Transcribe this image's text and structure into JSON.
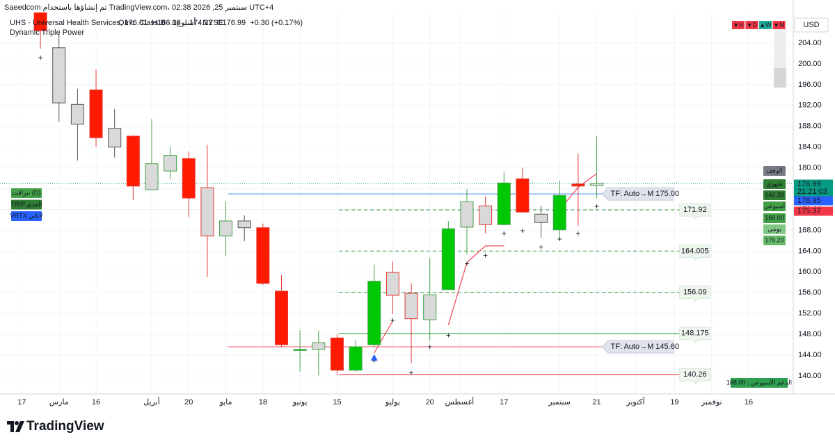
{
  "header": {
    "attribution": "Saeedcom تم إنشاؤها باستخدام TradingView.com، 02:38 2026 ,25 سبتمبر UTC+4",
    "symbol": "UHS · Universal Health Services, Inc. Class B · 1أسبوع · NYSE",
    "ohlc": [
      "O176.61",
      "H186.06",
      "L174.22",
      "C176.99",
      "+0.30 (+0.17%)"
    ],
    "indicator": "Dynamic Triple Power",
    "buttons": [
      {
        "text": "▼H",
        "color": "#f23645"
      },
      {
        "text": "▼D",
        "color": "#f23645"
      },
      {
        "text": "▲W",
        "color": "#22ab94"
      },
      {
        "text": "▼M",
        "color": "#f23645"
      }
    ],
    "currency": "USD"
  },
  "chart_data": {
    "type": "candlestick",
    "x": [
      1,
      2,
      3,
      4,
      5,
      6,
      7,
      8,
      9,
      10,
      11,
      12,
      13,
      14,
      15,
      16,
      17,
      18,
      19,
      20,
      21,
      22,
      23,
      24,
      25,
      26,
      27,
      28,
      29,
      30,
      31
    ],
    "open": [
      211,
      203.1,
      192.2,
      195.0,
      187.6,
      186.1,
      175.8,
      179.4,
      181.8,
      176.2,
      166.9,
      169.8,
      168.5,
      156.3,
      145.1,
      145.1,
      147.3,
      141.1,
      146.0,
      159.9,
      155.9,
      150.8,
      156.6,
      168.6,
      172.7,
      169.1,
      177.9,
      171.1,
      168.1,
      176.9,
      176.61
    ],
    "high": [
      213,
      205.6,
      195.2,
      198.9,
      191.3,
      186.3,
      189.4,
      184.0,
      183.2,
      184.4,
      173.5,
      170.9,
      169.3,
      159.4,
      148.8,
      148.7,
      148.0,
      146.8,
      161.4,
      162.0,
      157.8,
      162.7,
      169.8,
      175.9,
      174.5,
      179.1,
      180.0,
      172.7,
      177.5,
      182.8,
      186.06
    ],
    "low": [
      202.9,
      188.9,
      181.4,
      184.1,
      182.0,
      173.8,
      175.8,
      177.8,
      170.5,
      159.0,
      163.1,
      165.9,
      157.5,
      145.5,
      140.8,
      140.1,
      140.1,
      140.8,
      145.5,
      151.9,
      142.4,
      146.8,
      156.6,
      163.4,
      167.4,
      169.1,
      171.5,
      166.5,
      166.2,
      168.9,
      174.22
    ],
    "close": [
      206.4,
      192.5,
      188.4,
      185.8,
      184.0,
      176.5,
      180.8,
      182.4,
      174.2,
      166.9,
      169.8,
      168.5,
      157.8,
      146.0,
      145.1,
      146.4,
      141.1,
      145.6,
      158.2,
      155.5,
      151.0,
      155.6,
      168.3,
      173.5,
      169.1,
      177.1,
      171.5,
      169.5,
      174.7,
      176.5,
      176.99
    ],
    "fill_colors": [
      "#ff1a00",
      "#d9d9d9",
      "#d9d9d9",
      "#ff1a00",
      "#d9d9d9",
      "#ff1a00",
      "#d9d9d9",
      "#d9d9d9",
      "#ff1a00",
      "#d9d9d9",
      "#d9d9d9",
      "#d9d9d9",
      "#ff1a00",
      "#ff1a00",
      "#00c805",
      "#d9d9d9",
      "#ff1a00",
      "#00c805",
      "#00c805",
      "#d9d9d9",
      "#d9d9d9",
      "#d9d9d9",
      "#00c805",
      "#d9d9d9",
      "#d9d9d9",
      "#00c805",
      "#ff1a00",
      "#d9d9d9",
      "#00c805",
      "#ff1a00",
      "#d9d9d9"
    ],
    "edge_colors": [
      "#e53935",
      "#555555",
      "#555555",
      "#e53935",
      "#555555",
      "#e53935",
      "#43a047",
      "#43a047",
      "#e53935",
      "#e53935",
      "#43a047",
      "#555555",
      "#e53935",
      "#e53935",
      "#43a047",
      "#43a047",
      "#e53935",
      "#43a047",
      "#43a047",
      "#e53935",
      "#e53935",
      "#43a047",
      "#43a047",
      "#43a047",
      "#e53935",
      "#43a047",
      "#e53935",
      "#555555",
      "#43a047",
      "#e53935",
      "#43a047"
    ],
    "xlim": [
      -1.18,
      41.6
    ],
    "ylim": [
      136.53,
      209.88
    ],
    "xticks": [
      {
        "value": 0,
        "label": "17"
      },
      {
        "value": 2,
        "label": "مارس"
      },
      {
        "value": 4,
        "label": "16"
      },
      {
        "value": 7,
        "label": "أبريل"
      },
      {
        "value": 9,
        "label": "20"
      },
      {
        "value": 11,
        "label": "مايو"
      },
      {
        "value": 13,
        "label": "18"
      },
      {
        "value": 15,
        "label": "يونيو"
      },
      {
        "value": 17,
        "label": "15"
      },
      {
        "value": 20,
        "label": "يوليو"
      },
      {
        "value": 22,
        "label": "20"
      },
      {
        "value": 23.6,
        "label": "أغسطس"
      },
      {
        "value": 26,
        "label": "17"
      },
      {
        "value": 29,
        "label": "سبتمبر"
      },
      {
        "value": 31,
        "label": "21"
      },
      {
        "value": 33.1,
        "label": "أكتوبر"
      },
      {
        "value": 35.2,
        "label": "19"
      },
      {
        "value": 37.2,
        "label": "نوفمبر"
      },
      {
        "value": 39.2,
        "label": "16"
      }
    ],
    "yticks": [
      {
        "value": 140,
        "label": "140.00"
      },
      {
        "value": 144,
        "label": "144.00"
      },
      {
        "value": 148,
        "label": "148.00"
      },
      {
        "value": 152,
        "label": "152.00"
      },
      {
        "value": 156,
        "label": "156.00"
      },
      {
        "value": 160,
        "label": "160.00"
      },
      {
        "value": 164,
        "label": "164.00"
      },
      {
        "value": 168,
        "label": "168.00"
      },
      {
        "value": 172,
        "label": "172.00"
      },
      {
        "value": 176,
        "label": "176.00"
      },
      {
        "value": 180,
        "label": "180.00"
      },
      {
        "value": 184,
        "label": "184.00"
      },
      {
        "value": 188,
        "label": "188.00"
      },
      {
        "value": 192,
        "label": "192.00"
      },
      {
        "value": 196,
        "label": "196.00"
      },
      {
        "value": 200,
        "label": "200.00"
      },
      {
        "value": 204,
        "label": "204.00"
      }
    ],
    "grid": true,
    "last_price_color": "#089981",
    "levels": [
      {
        "value": 175.0,
        "label": "TF: Auto→M 175.00",
        "color": "#5b9cf0",
        "style": "solid",
        "x_from": 11.1,
        "x_to": 31.3
      },
      {
        "value": 145.6,
        "label": "TF: Auto→M 145.60",
        "color": "#f06d7a",
        "style": "solid",
        "x_from": 11.1,
        "x_to": 31.3
      },
      {
        "value": 171.92,
        "color": "#4caf50",
        "style": "dashed",
        "x_from": 17.1,
        "x_to": 36.3
      },
      {
        "value": 164.005,
        "color": "#4caf50",
        "style": "dashed",
        "x_from": 17.1,
        "x_to": 36.3
      },
      {
        "value": 156.09,
        "color": "#4caf50",
        "style": "dashed",
        "x_from": 17.1,
        "x_to": 36.3
      },
      {
        "value": 148.175,
        "color": "#4caf50",
        "style": "solid",
        "x_from": 17.1,
        "x_to": 36.3
      },
      {
        "value": 140.26,
        "color": "#e53945",
        "style": "solid",
        "x_from": 17.1,
        "x_to": 36.3
      }
    ],
    "trail": {
      "color": "#f05060",
      "x": [
        19,
        20,
        21,
        22,
        23,
        24,
        25,
        26,
        27,
        28,
        29,
        30,
        31
      ],
      "values": [
        144.4,
        150.6,
        null,
        null,
        149.8,
        161.8,
        165.0,
        165.0,
        null,
        null,
        171.9,
        176.3,
        178.9
      ]
    },
    "markers": [
      {
        "color": "#f23645",
        "x": [
          1,
          19,
          20,
          21,
          22,
          23,
          24,
          25,
          28
        ],
        "values": [
          201.1,
          142.8,
          150.6,
          140.5,
          145.5,
          147.7,
          161.5,
          163.1,
          164.7
        ]
      },
      {
        "color": "#ff9800",
        "x": [
          26,
          27,
          29,
          30,
          31
        ],
        "values": [
          167.3,
          167.8,
          166.2,
          167.3,
          172.5
        ]
      }
    ],
    "signal": {
      "x": 19,
      "value": 143.5,
      "color": "#2962ff"
    },
    "axis_tags": [
      {
        "text": "176.99",
        "sub": "21:21:03",
        "color": "#089981"
      },
      {
        "text": "176.95",
        "color": "#2962ff"
      },
      {
        "text": "175.37",
        "color": "#f23645"
      }
    ],
    "side_tags": [
      {
        "text": "الوقف",
        "color": "#787b86"
      },
      {
        "text": "شهري",
        "color": "#2e7d32"
      },
      {
        "text": "142.38",
        "color": "#2e7d32"
      },
      {
        "text": "أسبوعي",
        "color": "#43a047"
      },
      {
        "text": "168.00",
        "color": "#43a047"
      },
      {
        "text": "يومي",
        "color": "#81c784"
      },
      {
        "text": "176.20",
        "color": "#66bb6a"
      }
    ],
    "left_tags": [
      {
        "text": "نتراقت (D)",
        "color": "#43a047"
      },
      {
        "text": "TRIP المدى",
        "color": "#2e7d32"
      },
      {
        "text": "VRTX لاثاني",
        "color": "#2962ff"
      }
    ],
    "support_label": {
      "text": "الدعم الأسبوعي : 168.00",
      "color": "#2e9e4f"
    }
  },
  "footer": {
    "logo": "TradingView"
  }
}
